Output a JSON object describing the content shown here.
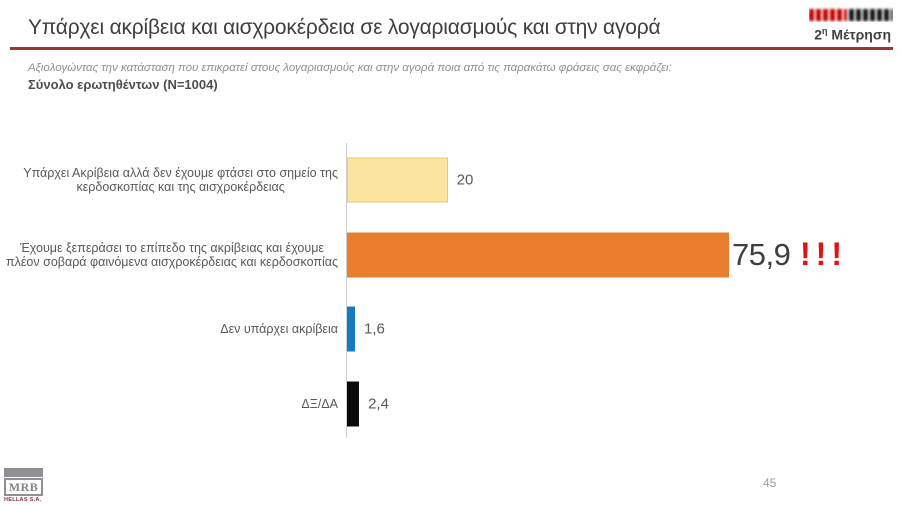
{
  "header": {
    "title": "Υπάρχει ακρίβεια και αισχροκέρδεια  σε λογαριασμούς και στην αγορά",
    "measurement_number": "2",
    "measurement_sup": "η",
    "measurement_text": " Μέτρηση",
    "rule_color": "#9e3431",
    "logo_left_color": "#c00000",
    "logo_right_color": "#141414"
  },
  "question": {
    "prompt": "Αξιολογώντας την κατάσταση που επικρατεί στους λογαριασμούς και στην αγορά ποια από τις παρακάτω φράσεις σας εκφράζει:",
    "base": "Σύνολο ερωτηθέντων (N=1004)"
  },
  "chart_data": {
    "type": "bar",
    "orientation": "horizontal",
    "categories": [
      "Υπάρχει Ακρίβεια αλλά δεν έχουμε φτάσει στο σημείο της\nκερδοσκοπίας και της αισχροκέρδειας",
      "Έχουμε ξεπεράσει το επίπεδο της ακρίβειας και έχουμε\nπλέον σοβαρά φαινόμενα αισχροκέρδειας και κερδοσκοπίας",
      "Δεν υπάρχει ακρίβεια",
      "ΔΞ/ΔΑ"
    ],
    "values": [
      20,
      75.9,
      1.6,
      2.4
    ],
    "value_labels": [
      "20",
      "75,9",
      "1,6",
      "2,4"
    ],
    "bar_colors": [
      "#fbe49d",
      "#e87e2e",
      "#1779bf",
      "#0a0a0a"
    ],
    "bar_border_colors": [
      "#e6ca7a",
      null,
      null,
      null
    ],
    "xlim": [
      0,
      100
    ],
    "grid": false,
    "legend": false,
    "axis_color": "#cfcfcf",
    "emphasis_index": 1,
    "annotation": {
      "text": "!!!",
      "color": "#e31212"
    }
  },
  "footer": {
    "logo_text": "MRB",
    "logo_subtext": "HELLAS S.A.",
    "page_number": "45"
  }
}
